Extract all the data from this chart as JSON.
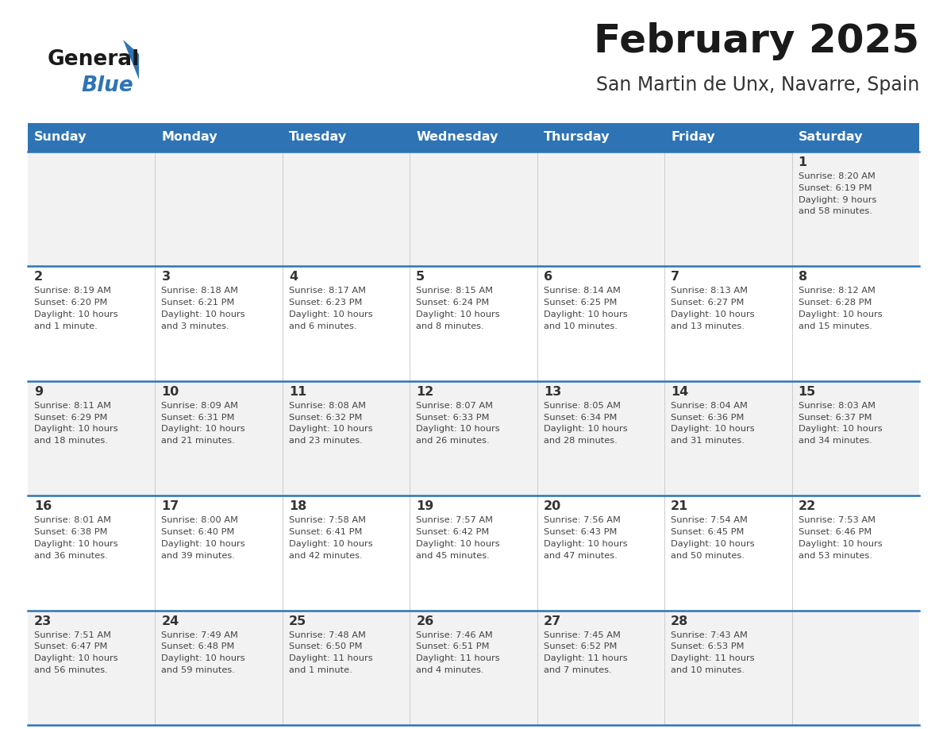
{
  "title": "February 2025",
  "subtitle": "San Martin de Unx, Navarre, Spain",
  "header_bg": "#2e74b5",
  "header_text_color": "#ffffff",
  "day_headers": [
    "Sunday",
    "Monday",
    "Tuesday",
    "Wednesday",
    "Thursday",
    "Friday",
    "Saturday"
  ],
  "row_bg_even": "#f2f2f2",
  "row_bg_odd": "#ffffff",
  "cell_border_color": "#2e74b5",
  "number_color": "#333333",
  "text_color": "#444444",
  "title_color": "#1a1a1a",
  "subtitle_color": "#333333",
  "logo_general_color": "#1a1a1a",
  "logo_blue_color": "#2e74b5",
  "logo_triangle_color": "#2e74b5",
  "calendar": [
    [
      {
        "day": null,
        "info": null
      },
      {
        "day": null,
        "info": null
      },
      {
        "day": null,
        "info": null
      },
      {
        "day": null,
        "info": null
      },
      {
        "day": null,
        "info": null
      },
      {
        "day": null,
        "info": null
      },
      {
        "day": 1,
        "info": "Sunrise: 8:20 AM\nSunset: 6:19 PM\nDaylight: 9 hours\nand 58 minutes."
      }
    ],
    [
      {
        "day": 2,
        "info": "Sunrise: 8:19 AM\nSunset: 6:20 PM\nDaylight: 10 hours\nand 1 minute."
      },
      {
        "day": 3,
        "info": "Sunrise: 8:18 AM\nSunset: 6:21 PM\nDaylight: 10 hours\nand 3 minutes."
      },
      {
        "day": 4,
        "info": "Sunrise: 8:17 AM\nSunset: 6:23 PM\nDaylight: 10 hours\nand 6 minutes."
      },
      {
        "day": 5,
        "info": "Sunrise: 8:15 AM\nSunset: 6:24 PM\nDaylight: 10 hours\nand 8 minutes."
      },
      {
        "day": 6,
        "info": "Sunrise: 8:14 AM\nSunset: 6:25 PM\nDaylight: 10 hours\nand 10 minutes."
      },
      {
        "day": 7,
        "info": "Sunrise: 8:13 AM\nSunset: 6:27 PM\nDaylight: 10 hours\nand 13 minutes."
      },
      {
        "day": 8,
        "info": "Sunrise: 8:12 AM\nSunset: 6:28 PM\nDaylight: 10 hours\nand 15 minutes."
      }
    ],
    [
      {
        "day": 9,
        "info": "Sunrise: 8:11 AM\nSunset: 6:29 PM\nDaylight: 10 hours\nand 18 minutes."
      },
      {
        "day": 10,
        "info": "Sunrise: 8:09 AM\nSunset: 6:31 PM\nDaylight: 10 hours\nand 21 minutes."
      },
      {
        "day": 11,
        "info": "Sunrise: 8:08 AM\nSunset: 6:32 PM\nDaylight: 10 hours\nand 23 minutes."
      },
      {
        "day": 12,
        "info": "Sunrise: 8:07 AM\nSunset: 6:33 PM\nDaylight: 10 hours\nand 26 minutes."
      },
      {
        "day": 13,
        "info": "Sunrise: 8:05 AM\nSunset: 6:34 PM\nDaylight: 10 hours\nand 28 minutes."
      },
      {
        "day": 14,
        "info": "Sunrise: 8:04 AM\nSunset: 6:36 PM\nDaylight: 10 hours\nand 31 minutes."
      },
      {
        "day": 15,
        "info": "Sunrise: 8:03 AM\nSunset: 6:37 PM\nDaylight: 10 hours\nand 34 minutes."
      }
    ],
    [
      {
        "day": 16,
        "info": "Sunrise: 8:01 AM\nSunset: 6:38 PM\nDaylight: 10 hours\nand 36 minutes."
      },
      {
        "day": 17,
        "info": "Sunrise: 8:00 AM\nSunset: 6:40 PM\nDaylight: 10 hours\nand 39 minutes."
      },
      {
        "day": 18,
        "info": "Sunrise: 7:58 AM\nSunset: 6:41 PM\nDaylight: 10 hours\nand 42 minutes."
      },
      {
        "day": 19,
        "info": "Sunrise: 7:57 AM\nSunset: 6:42 PM\nDaylight: 10 hours\nand 45 minutes."
      },
      {
        "day": 20,
        "info": "Sunrise: 7:56 AM\nSunset: 6:43 PM\nDaylight: 10 hours\nand 47 minutes."
      },
      {
        "day": 21,
        "info": "Sunrise: 7:54 AM\nSunset: 6:45 PM\nDaylight: 10 hours\nand 50 minutes."
      },
      {
        "day": 22,
        "info": "Sunrise: 7:53 AM\nSunset: 6:46 PM\nDaylight: 10 hours\nand 53 minutes."
      }
    ],
    [
      {
        "day": 23,
        "info": "Sunrise: 7:51 AM\nSunset: 6:47 PM\nDaylight: 10 hours\nand 56 minutes."
      },
      {
        "day": 24,
        "info": "Sunrise: 7:49 AM\nSunset: 6:48 PM\nDaylight: 10 hours\nand 59 minutes."
      },
      {
        "day": 25,
        "info": "Sunrise: 7:48 AM\nSunset: 6:50 PM\nDaylight: 11 hours\nand 1 minute."
      },
      {
        "day": 26,
        "info": "Sunrise: 7:46 AM\nSunset: 6:51 PM\nDaylight: 11 hours\nand 4 minutes."
      },
      {
        "day": 27,
        "info": "Sunrise: 7:45 AM\nSunset: 6:52 PM\nDaylight: 11 hours\nand 7 minutes."
      },
      {
        "day": 28,
        "info": "Sunrise: 7:43 AM\nSunset: 6:53 PM\nDaylight: 11 hours\nand 10 minutes."
      },
      {
        "day": null,
        "info": null
      }
    ]
  ]
}
